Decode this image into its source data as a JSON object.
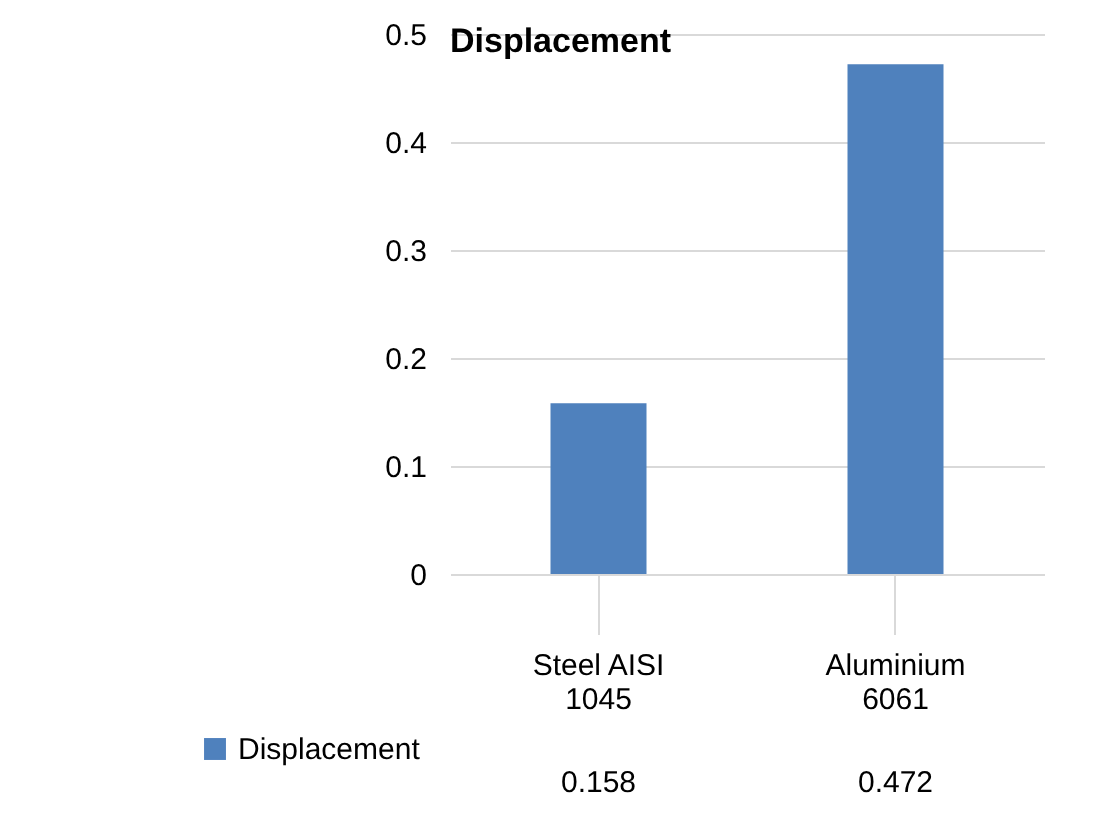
{
  "chart_data": {
    "type": "bar",
    "title": "Displacement",
    "categories": [
      "Steel AISI 1045",
      "Aluminium 6061"
    ],
    "series": [
      {
        "name": "Displacement",
        "color": "#4f81bd",
        "values": [
          0.158,
          0.472
        ]
      }
    ],
    "ylim": [
      0,
      0.5
    ],
    "yticks": [
      0,
      0.1,
      0.2,
      0.3,
      0.4,
      0.5
    ],
    "grid": "y",
    "data_labels": true,
    "legend": "bottom left"
  }
}
